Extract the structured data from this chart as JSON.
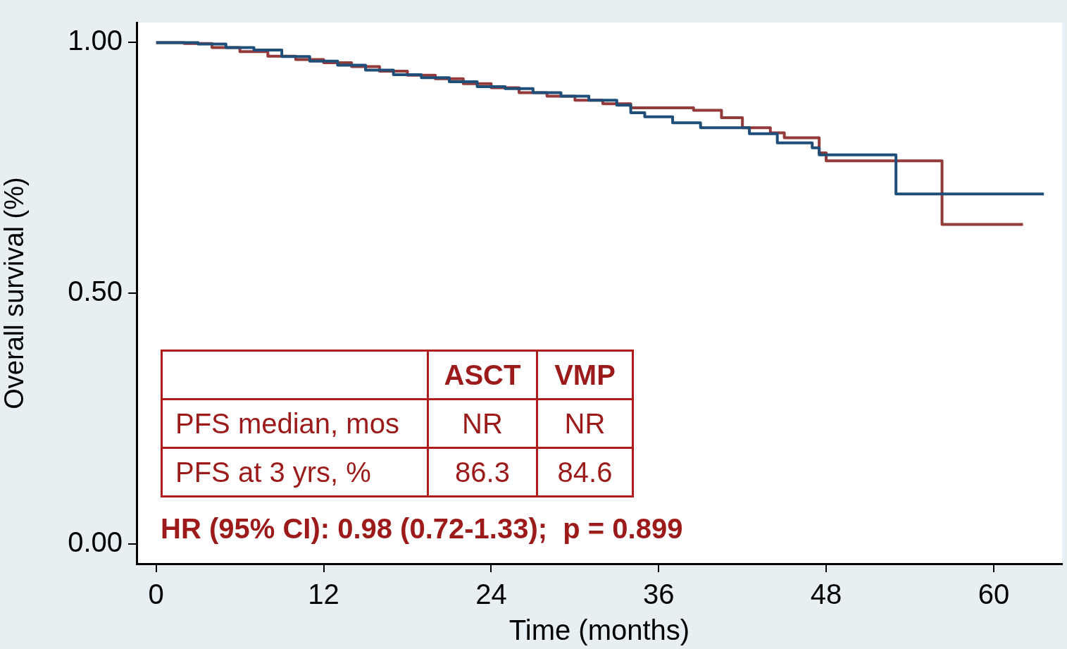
{
  "chart_data": {
    "type": "step",
    "xlabel": "Time (months)",
    "ylabel": "Overall survival (%)",
    "xlim": [
      -1.4,
      64.9
    ],
    "xticks": [
      0,
      12,
      24,
      36,
      48,
      60
    ],
    "ylim": [
      -0.04,
      1.04
    ],
    "yticks": [
      {
        "value": 0,
        "label": "0.00"
      },
      {
        "value": 0.5,
        "label": "0.50"
      },
      {
        "value": 1,
        "label": "1.00"
      }
    ],
    "grid": false,
    "legend": false,
    "marker": "none",
    "line_style": "solid",
    "series": [
      {
        "color": "#1f4e79",
        "x": [
          0,
          3,
          5,
          7,
          9,
          11,
          13,
          15,
          17,
          19,
          21,
          23,
          25,
          27,
          29,
          31,
          33,
          34,
          35,
          37,
          39,
          42.5,
          44.5,
          47,
          47.5,
          53,
          63.6
        ],
        "values": [
          1.0,
          0.997,
          0.99,
          0.985,
          0.972,
          0.963,
          0.955,
          0.945,
          0.936,
          0.93,
          0.922,
          0.912,
          0.908,
          0.9,
          0.893,
          0.885,
          0.875,
          0.86,
          0.852,
          0.84,
          0.83,
          0.818,
          0.8,
          0.79,
          0.776,
          0.698,
          0.698
        ]
      },
      {
        "color": "#943a3a",
        "x": [
          0,
          2,
          4,
          6,
          8,
          10,
          12,
          14,
          16,
          18,
          20,
          22,
          24,
          26,
          28,
          30,
          32,
          34,
          38.5,
          40.5,
          42,
          44,
          45,
          47.5,
          48,
          56.3,
          62.1
        ],
        "values": [
          1.0,
          0.998,
          0.99,
          0.982,
          0.973,
          0.966,
          0.96,
          0.952,
          0.943,
          0.935,
          0.928,
          0.918,
          0.91,
          0.9,
          0.893,
          0.885,
          0.878,
          0.87,
          0.865,
          0.85,
          0.83,
          0.82,
          0.81,
          0.78,
          0.764,
          0.637,
          0.637
        ]
      }
    ],
    "annotations": [
      "ASCT",
      "VMP",
      "PFS median, mos",
      "NR",
      "NR",
      "PFS at 3 yrs, %",
      "86.3",
      "84.6",
      "HR (95% CI): 0.98 (0.72-1.33);  p = 0.899"
    ]
  }
}
